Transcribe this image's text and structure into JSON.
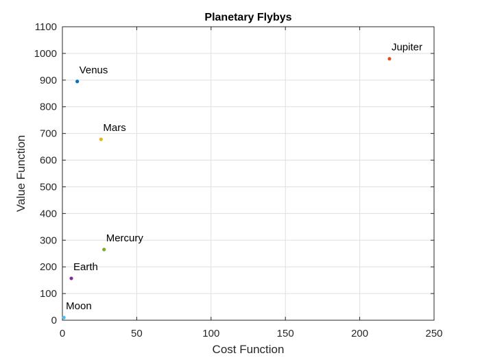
{
  "chart_data": {
    "type": "scatter",
    "title": "Planetary Flybys",
    "xlabel": "Cost Function",
    "ylabel": "Value Function",
    "xlim": [
      0,
      250
    ],
    "ylim": [
      0,
      1100
    ],
    "xticks": [
      0,
      50,
      100,
      150,
      200,
      250
    ],
    "yticks": [
      0,
      100,
      200,
      300,
      400,
      500,
      600,
      700,
      800,
      900,
      1000,
      1100
    ],
    "grid": true,
    "points": [
      {
        "label": "Venus",
        "x": 10,
        "y": 895,
        "color": "#0072BD"
      },
      {
        "label": "Jupiter",
        "x": 220,
        "y": 980,
        "color": "#D95319"
      },
      {
        "label": "Mars",
        "x": 26,
        "y": 678,
        "color": "#EDB120"
      },
      {
        "label": "Earth",
        "x": 6,
        "y": 157,
        "color": "#7E2F8E"
      },
      {
        "label": "Mercury",
        "x": 28,
        "y": 265,
        "color": "#77AC30"
      },
      {
        "label": "Moon",
        "x": 1,
        "y": 10,
        "color": "#4DBEEE"
      }
    ]
  }
}
